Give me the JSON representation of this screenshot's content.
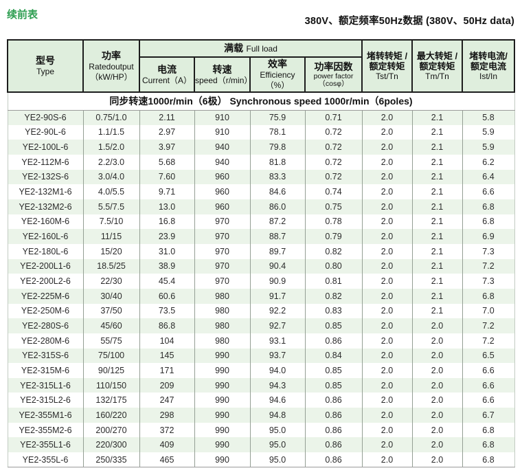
{
  "page": {
    "continued_label": "续前表",
    "title_right": "380V、额定频率50Hz数据 (380V、50Hz data)"
  },
  "table": {
    "group_header": {
      "full_load_zh": "满载",
      "full_load_en": "Full load"
    },
    "columns": {
      "type": {
        "zh": "型号",
        "en": "Type"
      },
      "power": {
        "zh": "功率",
        "en": "Ratedoutput",
        "unit": "（kW/HP）"
      },
      "current": {
        "zh": "电流",
        "en": "Current（A）"
      },
      "speed": {
        "zh": "转速",
        "en": "speed（r/min）"
      },
      "efficiency": {
        "zh": "效率",
        "en": "Efficiency（%）"
      },
      "power_factor": {
        "zh": "功率因数",
        "en": "power factor",
        "unit": "（cosφ）"
      },
      "tst_tn": {
        "zh1": "堵转转矩 /",
        "zh2": "额定转矩",
        "en": "Tst/Tn"
      },
      "tm_tn": {
        "zh1": "最大转矩 /",
        "zh2": "额定转矩",
        "en": "Tm/Tn"
      },
      "ist_in": {
        "zh1": "堵转电流/",
        "zh2": "额定电流",
        "en": "Ist/In"
      }
    },
    "column_keys": [
      "type",
      "power",
      "current",
      "speed",
      "efficiency",
      "power_factor",
      "tst_tn",
      "tm_tn",
      "ist_in"
    ],
    "section_label": "同步转速1000r/min（6极）  Synchronous speed 1000r/min（6poles)",
    "rows": [
      [
        "YE2-90S-6",
        "0.75/1.0",
        "2.11",
        "910",
        "75.9",
        "0.71",
        "2.0",
        "2.1",
        "5.8"
      ],
      [
        "YE2-90L-6",
        "1.1/1.5",
        "2.97",
        "910",
        "78.1",
        "0.72",
        "2.0",
        "2.1",
        "5.9"
      ],
      [
        "YE2-100L-6",
        "1.5/2.0",
        "3.97",
        "940",
        "79.8",
        "0.72",
        "2.0",
        "2.1",
        "5.9"
      ],
      [
        "YE2-112M-6",
        "2.2/3.0",
        "5.68",
        "940",
        "81.8",
        "0.72",
        "2.0",
        "2.1",
        "6.2"
      ],
      [
        "YE2-132S-6",
        "3.0/4.0",
        "7.60",
        "960",
        "83.3",
        "0.72",
        "2.0",
        "2.1",
        "6.4"
      ],
      [
        "YE2-132M1-6",
        "4.0/5.5",
        "9.71",
        "960",
        "84.6",
        "0.74",
        "2.0",
        "2.1",
        "6.6"
      ],
      [
        "YE2-132M2-6",
        "5.5/7.5",
        "13.0",
        "960",
        "86.0",
        "0.75",
        "2.0",
        "2.1",
        "6.8"
      ],
      [
        "YE2-160M-6",
        "7.5/10",
        "16.8",
        "970",
        "87.2",
        "0.78",
        "2.0",
        "2.1",
        "6.8"
      ],
      [
        "YE2-160L-6",
        "11/15",
        "23.9",
        "970",
        "88.7",
        "0.79",
        "2.0",
        "2.1",
        "6.9"
      ],
      [
        "YE2-180L-6",
        "15/20",
        "31.0",
        "970",
        "89.7",
        "0.82",
        "2.0",
        "2.1",
        "7.3"
      ],
      [
        "YE2-200L1-6",
        "18.5/25",
        "38.9",
        "970",
        "90.4",
        "0.80",
        "2.0",
        "2.1",
        "7.2"
      ],
      [
        "YE2-200L2-6",
        "22/30",
        "45.4",
        "970",
        "90.9",
        "0.81",
        "2.0",
        "2.1",
        "7.3"
      ],
      [
        "YE2-225M-6",
        "30/40",
        "60.6",
        "980",
        "91.7",
        "0.82",
        "2.0",
        "2.1",
        "6.8"
      ],
      [
        "YE2-250M-6",
        "37/50",
        "73.5",
        "980",
        "92.2",
        "0.83",
        "2.0",
        "2.1",
        "7.0"
      ],
      [
        "YE2-280S-6",
        "45/60",
        "86.8",
        "980",
        "92.7",
        "0.85",
        "2.0",
        "2.0",
        "7.2"
      ],
      [
        "YE2-280M-6",
        "55/75",
        "104",
        "980",
        "93.1",
        "0.86",
        "2.0",
        "2.0",
        "7.2"
      ],
      [
        "YE2-315S-6",
        "75/100",
        "145",
        "990",
        "93.7",
        "0.84",
        "2.0",
        "2.0",
        "6.5"
      ],
      [
        "YE2-315M-6",
        "90/125",
        "171",
        "990",
        "94.0",
        "0.85",
        "2.0",
        "2.0",
        "6.6"
      ],
      [
        "YE2-315L1-6",
        "110/150",
        "209",
        "990",
        "94.3",
        "0.85",
        "2.0",
        "2.0",
        "6.6"
      ],
      [
        "YE2-315L2-6",
        "132/175",
        "247",
        "990",
        "94.6",
        "0.86",
        "2.0",
        "2.0",
        "6.6"
      ],
      [
        "YE2-355M1-6",
        "160/220",
        "298",
        "990",
        "94.8",
        "0.86",
        "2.0",
        "2.0",
        "6.7"
      ],
      [
        "YE2-355M2-6",
        "200/270",
        "372",
        "990",
        "95.0",
        "0.86",
        "2.0",
        "2.0",
        "6.8"
      ],
      [
        "YE2-355L1-6",
        "220/300",
        "409",
        "990",
        "95.0",
        "0.86",
        "2.0",
        "2.0",
        "6.8"
      ],
      [
        "YE2-355L-6",
        "250/335",
        "465",
        "990",
        "95.0",
        "0.86",
        "2.0",
        "2.0",
        "6.8"
      ]
    ]
  },
  "colors": {
    "header_bg": "#dfeedd",
    "row_alt_bg": "#ebf4e9",
    "accent_green": "#2e9e51"
  }
}
